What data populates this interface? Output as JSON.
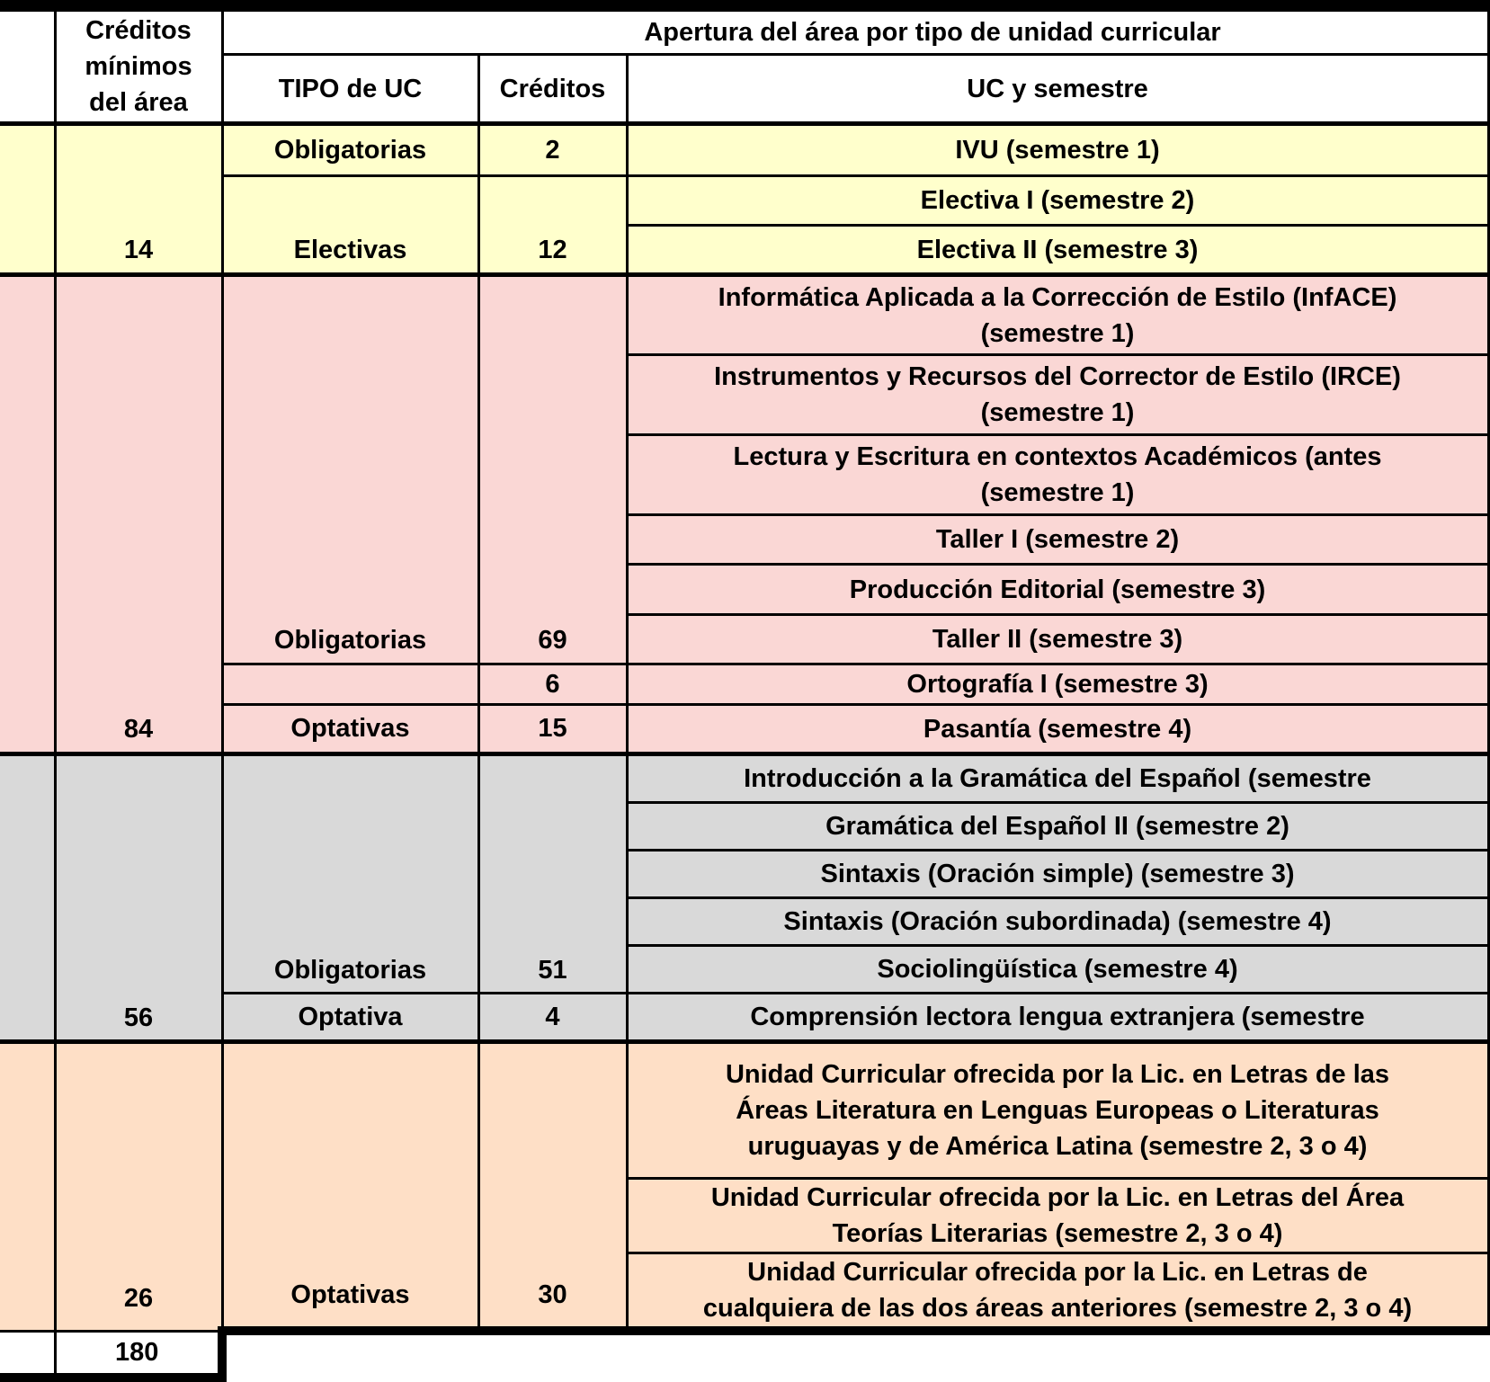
{
  "columns": {
    "min_credits_lines": [
      "Créditos",
      "mínimos",
      "del área"
    ],
    "apertura": "Apertura del área por tipo de unidad curricular",
    "tipo": "TIPO de UC",
    "creditos": "Créditos",
    "uc": "UC y semestre"
  },
  "sections": [
    {
      "name": "area-electivas",
      "bg": "#FFFFCC",
      "min_credits": "14",
      "rows": [
        {
          "tipo": "Obligatorias",
          "creditos": "2",
          "uc": [
            "IVU (semestre 1)"
          ]
        },
        {
          "tipo": "Electivas",
          "creditos": "12",
          "uc": [
            "Electiva I (semestre 2)"
          ]
        },
        {
          "uc": [
            "Electiva II (semestre 3)"
          ]
        }
      ]
    },
    {
      "name": "area-correccion-de-estilo",
      "bg": "#FAD7D5",
      "min_credits": "84",
      "rows": [
        {
          "tipo": "Obligatorias",
          "creditos": "69",
          "uc": [
            "Informática Aplicada a la Corrección de Estilo (InfACE)",
            "(semestre 1)"
          ]
        },
        {
          "uc": [
            "Instrumentos y Recursos del Corrector de Estilo (IRCE)",
            "(semestre 1)"
          ]
        },
        {
          "uc": [
            "Lectura y Escritura en contextos Académicos (antes",
            "(semestre 1)"
          ]
        },
        {
          "uc": [
            "Taller I (semestre 2)"
          ]
        },
        {
          "uc": [
            "Producción Editorial (semestre 3)"
          ]
        },
        {
          "uc": [
            "Taller II (semestre 3)"
          ]
        },
        {
          "tipo": "",
          "creditos": "6",
          "uc": [
            "Ortografía I (semestre 3)"
          ]
        },
        {
          "tipo": "Optativas",
          "creditos": "15",
          "uc": [
            "Pasantía (semestre 4)"
          ]
        }
      ]
    },
    {
      "name": "area-lengua",
      "bg": "#D9D9D9",
      "min_credits": "56",
      "rows": [
        {
          "tipo": "Obligatorias",
          "creditos": "51",
          "uc": [
            "Introducción a la Gramática del Español (semestre"
          ]
        },
        {
          "uc": [
            "Gramática del Español II (semestre 2)"
          ]
        },
        {
          "uc": [
            "Sintaxis (Oración simple) (semestre 3)"
          ]
        },
        {
          "uc": [
            "Sintaxis (Oración subordinada) (semestre 4)"
          ]
        },
        {
          "uc": [
            "Sociolingüística (semestre 4)"
          ]
        },
        {
          "tipo": "Optativa",
          "creditos": "4",
          "uc": [
            "Comprensión lectora lengua extranjera (semestre"
          ]
        }
      ]
    },
    {
      "name": "area-literatura",
      "bg": "#FEDFC6",
      "min_credits": "26",
      "rows": [
        {
          "tipo": "Optativas",
          "creditos": "30",
          "uc": [
            "Unidad Curricular ofrecida por la Lic. en Letras de las",
            "Áreas Literatura en Lenguas Europeas o Literaturas",
            "uruguayas y de América Latina (semestre 2, 3 o 4)"
          ]
        },
        {
          "uc": [
            "Unidad Curricular ofrecida por la Lic. en Letras del Área",
            "Teorías Literarias (semestre 2, 3 o 4)"
          ]
        },
        {
          "uc": [
            "Unidad Curricular ofrecida por la Lic. en Letras de",
            "cualquiera de las dos áreas anteriores (semestre 2, 3 o 4)"
          ]
        }
      ]
    }
  ],
  "total_credits": "180",
  "colors": {
    "border": "#000000",
    "header_bg": "#FFFFFF",
    "yellow": "#FFFFCC",
    "pink": "#FAD7D5",
    "gray": "#D9D9D9",
    "orange": "#FEDFC6"
  }
}
